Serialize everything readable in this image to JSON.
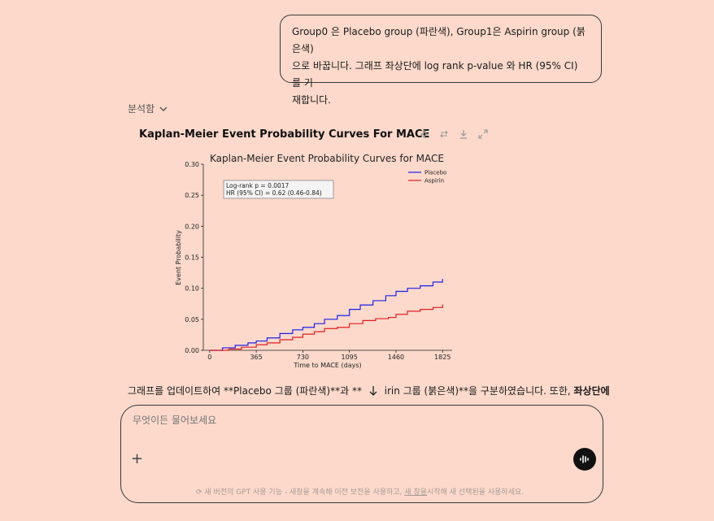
{
  "user_message": {
    "lines": [
      "Group0 은 Placebo group (파란색), Group1은 Aspirin group (붉은색)",
      "으로 바꿉니다. 그래프 좌상단에 log rank p-value 와 HR (95% CI) 를 기",
      "재합니다."
    ]
  },
  "analysis_toggle": {
    "label": "분석함",
    "icon": "chevron-down-icon"
  },
  "chart_header": {
    "title": "Kaplan-Meier Event Probability Curves For MACE",
    "tools": [
      "sparkle-icon",
      "switch-icon",
      "download-icon",
      "expand-icon"
    ]
  },
  "chart_data": {
    "type": "line",
    "title": "Kaplan-Meier Event Probability Curves for MACE",
    "xlabel": "Time to MACE (days)",
    "ylabel": "Event Probability",
    "xlim": [
      -50,
      1900
    ],
    "ylim": [
      0,
      0.3
    ],
    "xticks": [
      0,
      365,
      730,
      1095,
      1460,
      1825
    ],
    "yticks": [
      "0.00",
      "0.05",
      "0.10",
      "0.15",
      "0.20",
      "0.25",
      "0.30"
    ],
    "annotation": [
      "Log-rank p = 0.0017",
      "HR (95% CI) = 0.62 (0.46-0.84)"
    ],
    "legend_position": "top-right",
    "series": [
      {
        "name": "Placebo",
        "color": "#1f1fe6",
        "x": [
          0,
          100,
          200,
          300,
          365,
          450,
          550,
          650,
          730,
          820,
          900,
          1000,
          1095,
          1180,
          1280,
          1380,
          1460,
          1550,
          1650,
          1750,
          1825
        ],
        "y": [
          0,
          0.004,
          0.008,
          0.012,
          0.015,
          0.02,
          0.027,
          0.033,
          0.037,
          0.043,
          0.05,
          0.056,
          0.066,
          0.073,
          0.08,
          0.088,
          0.095,
          0.1,
          0.104,
          0.11,
          0.115
        ]
      },
      {
        "name": "Aspirin",
        "color": "#e02020",
        "x": [
          0,
          100,
          150,
          250,
          365,
          450,
          550,
          650,
          730,
          820,
          900,
          1000,
          1095,
          1200,
          1300,
          1400,
          1460,
          1550,
          1650,
          1750,
          1825
        ],
        "y": [
          0,
          0,
          0.002,
          0.005,
          0.009,
          0.012,
          0.017,
          0.021,
          0.026,
          0.03,
          0.035,
          0.037,
          0.043,
          0.048,
          0.051,
          0.053,
          0.058,
          0.063,
          0.066,
          0.069,
          0.074
        ]
      }
    ]
  },
  "assistant_reply": {
    "text_before": "그래프를 업데이트하여 **Placebo 그룹 (파란색)**과 **",
    "text_after": "irin 그룹 (붉은색)**을 구분하였습니다. 또한,",
    "bold_tail": "좌상단에"
  },
  "composer": {
    "placeholder": "무엇이든 물어보세요",
    "footnote_before": "새 버전의 GPT 사용 기능 - 새창을 계속해 이전 보전을 사용하고,",
    "footnote_link": "새 창을",
    "footnote_after": "시작해 새 선택된을 사용하세요."
  }
}
